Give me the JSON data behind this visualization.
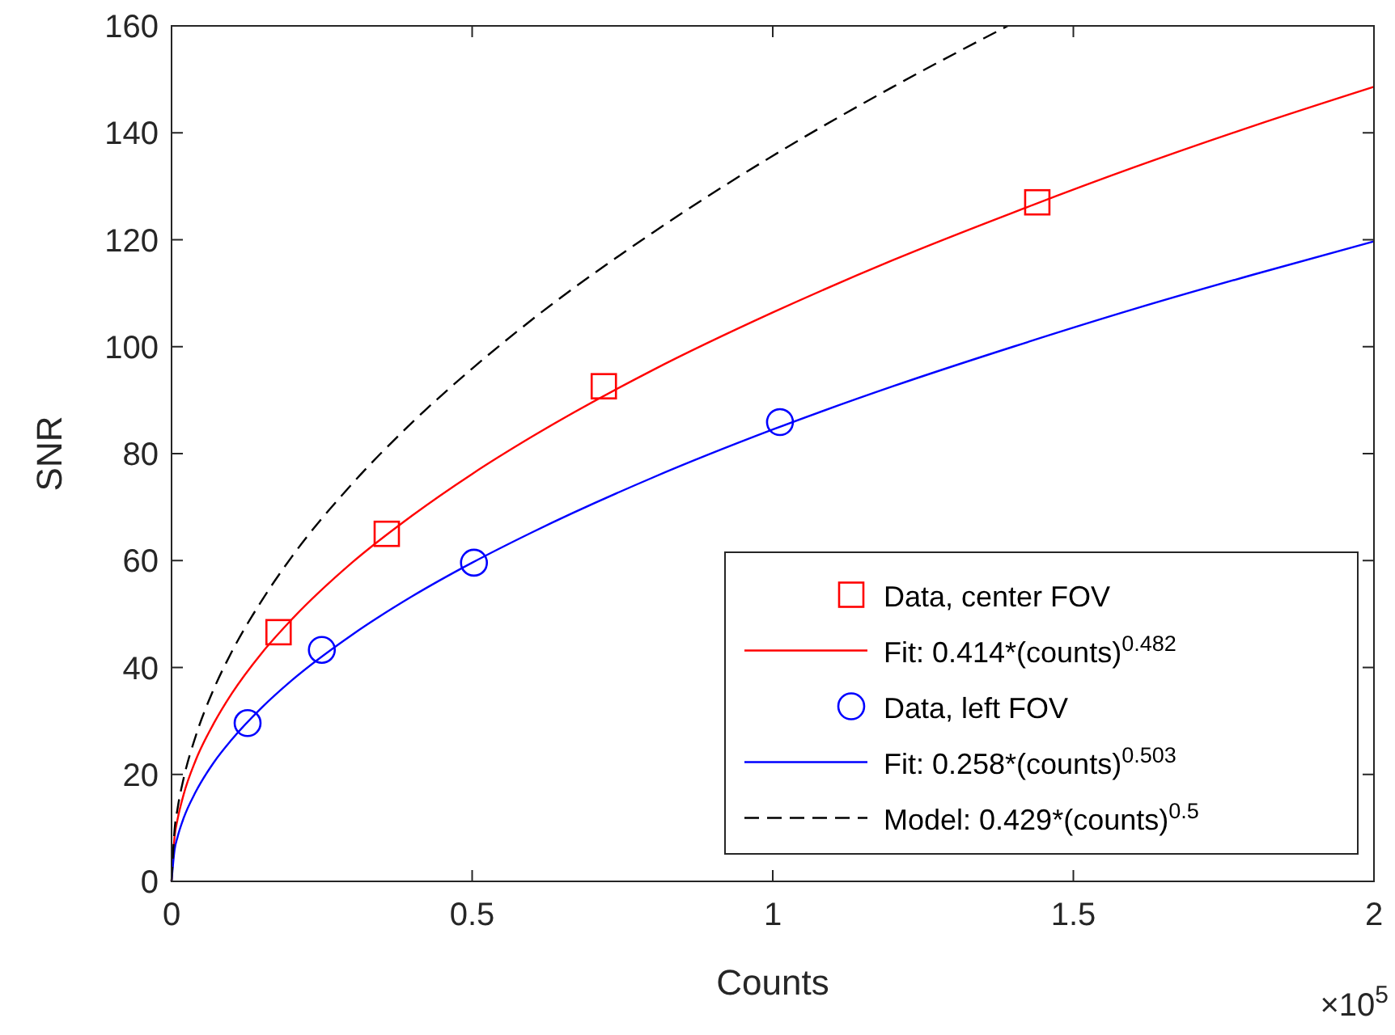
{
  "chart_data": {
    "type": "line",
    "xlabel": "Counts",
    "ylabel": "SNR",
    "xlim": [
      0,
      2
    ],
    "xticks": [
      0,
      0.5,
      1,
      1.5,
      2
    ],
    "ylim": [
      0,
      160
    ],
    "yticks": [
      0,
      20,
      40,
      60,
      80,
      100,
      120,
      140,
      160
    ],
    "legend": "bottom right",
    "annotations": [
      "×10$^{5}$"
    ],
    "series": [
      {
        "name": "Data, center FOV",
        "type": "scatter",
        "color": "#ff0000",
        "marker": "square",
        "x": [
          0.178,
          0.358,
          0.719,
          1.44
        ],
        "values": [
          46.6,
          65.0,
          92.6,
          127.0
        ]
      },
      {
        "name": "Fit: 0.414*(counts)$^{0.482}$",
        "color": "#ff0000",
        "line_style": "solid",
        "x": [
          0,
          0.005,
          0.01,
          0.02,
          0.04,
          0.07,
          0.1,
          0.15,
          0.2,
          0.3,
          0.4,
          0.5,
          0.6,
          0.8,
          1.0,
          1.2,
          1.4,
          1.6,
          1.8,
          2.0
        ],
        "values": [
          0,
          8.3,
          11.6,
          16.2,
          22.6,
          29.5,
          35.1,
          42.7,
          49.0,
          59.6,
          68.4,
          76.2,
          83.2,
          95.6,
          106.4,
          116.2,
          125.1,
          133.5,
          141.3,
          148.6
        ]
      },
      {
        "name": "Data, left FOV",
        "type": "scatter",
        "color": "#0000ff",
        "marker": "circle",
        "x": [
          0.1265,
          0.25,
          0.503,
          1.012
        ],
        "values": [
          29.6,
          43.3,
          59.6,
          85.9
        ]
      },
      {
        "name": "Fit: 0.258*(counts)$^{0.503}$",
        "color": "#0000ff",
        "line_style": "solid",
        "x": [
          0,
          0.005,
          0.01,
          0.02,
          0.04,
          0.07,
          0.1,
          0.15,
          0.2,
          0.3,
          0.4,
          0.5,
          0.6,
          0.8,
          1.0,
          1.2,
          1.4,
          1.6,
          1.8,
          2.0
        ],
        "values": [
          0,
          5.9,
          8.3,
          11.8,
          16.7,
          22.2,
          26.5,
          32.5,
          37.6,
          46.1,
          53.3,
          59.6,
          65.3,
          75.5,
          84.5,
          92.6,
          100.0,
          107.0,
          113.5,
          119.7
        ]
      },
      {
        "name": "Model: 0.429*(counts)$^{0.5}$",
        "color": "#000000",
        "line_style": "dashed",
        "x": [
          0,
          0.005,
          0.01,
          0.02,
          0.04,
          0.07,
          0.1,
          0.15,
          0.2,
          0.3,
          0.4,
          0.5,
          0.6,
          0.8,
          1.0,
          1.2,
          1.391
        ],
        "values": [
          0,
          9.6,
          13.6,
          19.2,
          27.1,
          35.9,
          42.9,
          52.5,
          60.7,
          74.3,
          85.8,
          95.9,
          105.1,
          121.3,
          135.7,
          148.6,
          160.0
        ]
      }
    ]
  }
}
